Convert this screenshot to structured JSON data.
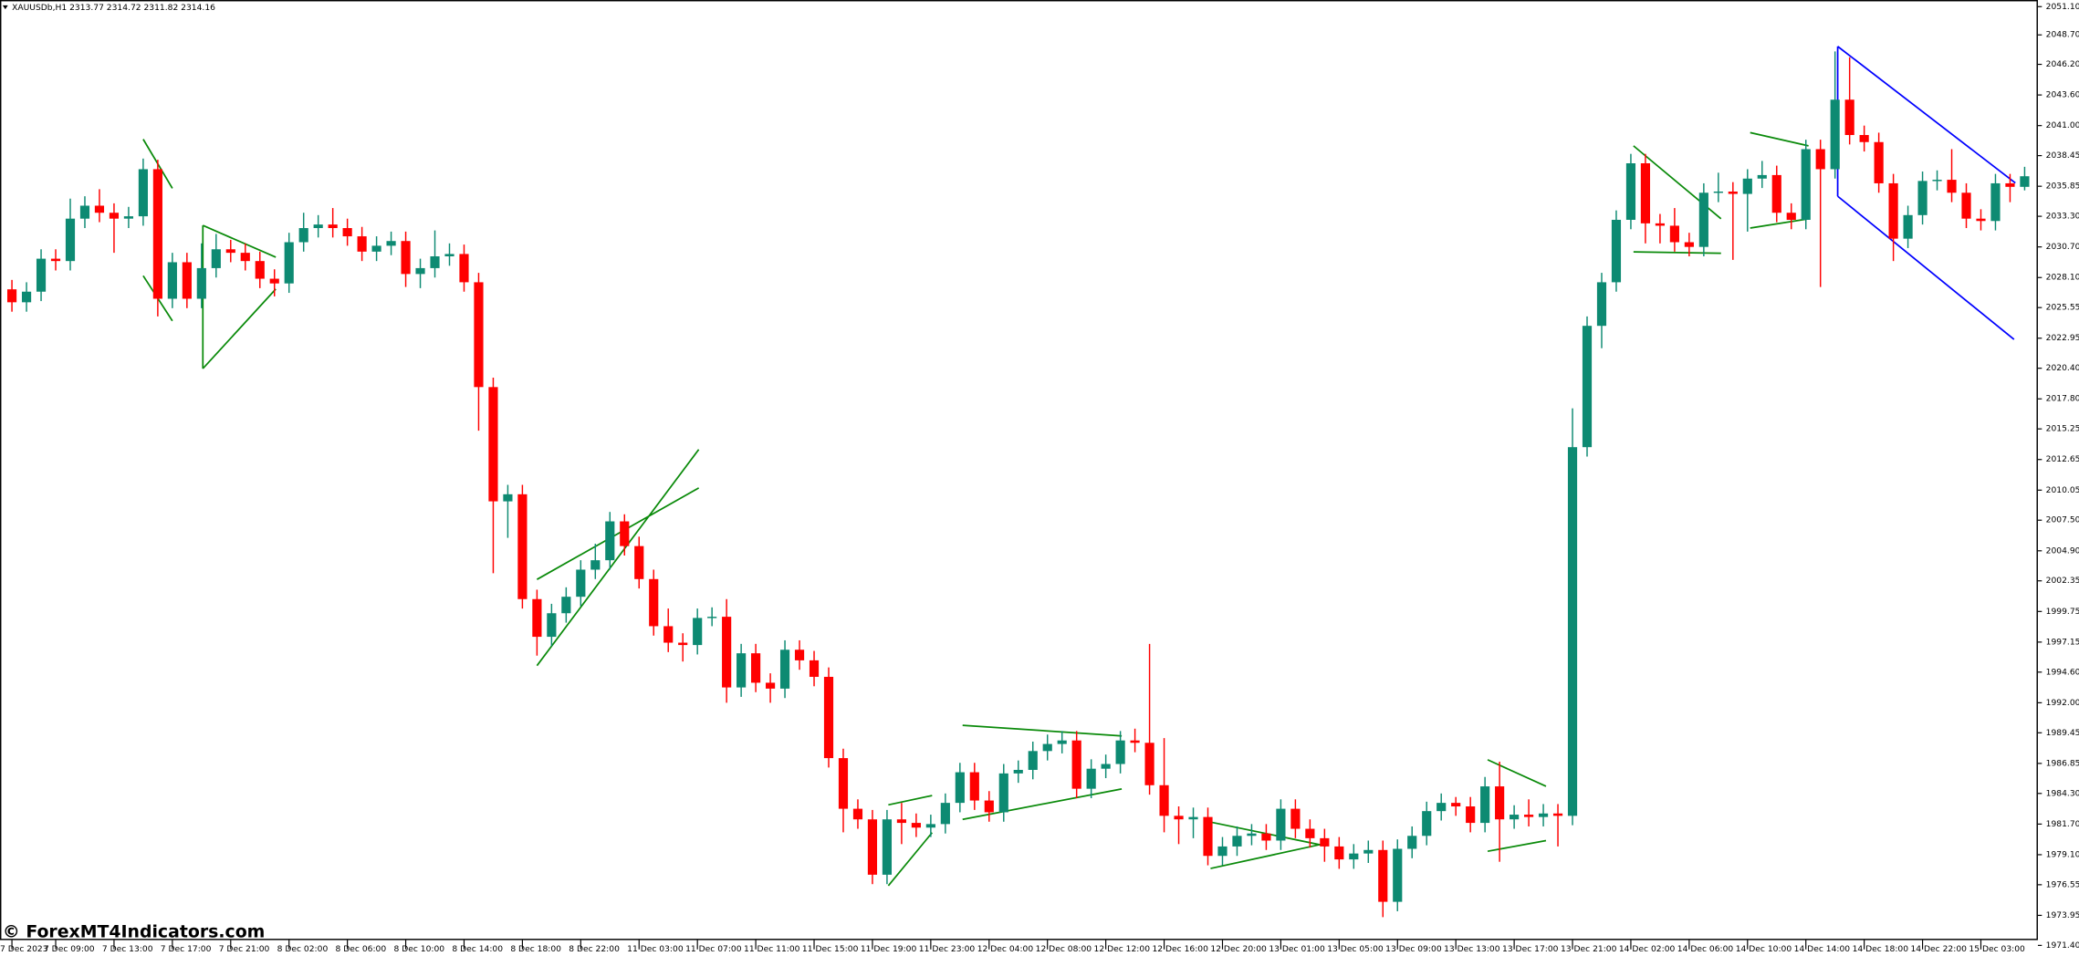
{
  "chart_data": {
    "type": "candlestick",
    "title": "XAUUSDb,H1  2313.77 2314.72 2311.82 2314.16",
    "watermark": "© ForexMT4Indicators.com",
    "up_color": "#0d8a72",
    "down_color": "#ff0000",
    "categories": [
      "7 Dec 2023",
      null,
      null,
      "7 Dec 09:00",
      null,
      null,
      null,
      "7 Dec 13:00",
      null,
      null,
      null,
      "7 Dec 17:00",
      null,
      null,
      null,
      "7 Dec 21:00",
      null,
      null,
      null,
      "8 Dec 02:00",
      null,
      null,
      null,
      "8 Dec 06:00",
      null,
      null,
      null,
      "8 Dec 10:00",
      null,
      null,
      null,
      "8 Dec 14:00",
      null,
      null,
      null,
      "8 Dec 18:00",
      null,
      null,
      null,
      "8 Dec 22:00",
      null,
      null,
      null,
      "11 Dec 03:00",
      null,
      null,
      null,
      "11 Dec 07:00",
      null,
      null,
      null,
      "11 Dec 11:00",
      null,
      null,
      null,
      "11 Dec 15:00",
      null,
      null,
      null,
      "11 Dec 19:00",
      null,
      null,
      null,
      "11 Dec 23:00",
      null,
      null,
      null,
      "12 Dec 04:00",
      null,
      null,
      null,
      "12 Dec 08:00",
      null,
      null,
      null,
      "12 Dec 12:00",
      null,
      null,
      null,
      "12 Dec 16:00",
      null,
      null,
      null,
      "12 Dec 20:00",
      null,
      null,
      null,
      "13 Dec 01:00",
      null,
      null,
      null,
      "13 Dec 05:00",
      null,
      null,
      null,
      "13 Dec 09:00",
      null,
      null,
      null,
      "13 Dec 13:00",
      null,
      null,
      null,
      "13 Dec 17:00",
      null,
      null,
      null,
      "13 Dec 21:00",
      null,
      null,
      null,
      "14 Dec 02:00",
      null,
      null,
      null,
      "14 Dec 06:00",
      null,
      null,
      null,
      "14 Dec 10:00",
      null,
      null,
      null,
      "14 Dec 14:00",
      null,
      null,
      null,
      "14 Dec 18:00",
      null,
      null,
      null,
      "14 Dec 22:00",
      null,
      null,
      null,
      "15 Dec 03:00",
      null,
      null,
      null
    ],
    "open": [
      2027.1,
      2026.0,
      2026.9,
      2029.7,
      2029.5,
      2033.1,
      2034.2,
      2033.6,
      2033.1,
      2033.3,
      2037.3,
      2026.3,
      2029.4,
      2026.3,
      2028.9,
      2030.5,
      2030.2,
      2029.5,
      2028.0,
      2027.6,
      2031.1,
      2032.3,
      2032.6,
      2032.3,
      2031.6,
      2030.3,
      2030.8,
      2031.2,
      2028.4,
      2028.9,
      2029.9,
      2030.1,
      2027.7,
      2018.8,
      2009.1,
      2009.7,
      2000.8,
      1997.6,
      1999.6,
      2001.0,
      2003.3,
      2004.1,
      2007.4,
      2005.3,
      2002.5,
      1998.5,
      1997.1,
      1996.9,
      1999.2,
      1999.3,
      1993.3,
      1996.2,
      1993.7,
      1993.2,
      1996.5,
      1995.6,
      1994.2,
      1987.3,
      1983.0,
      1982.1,
      1977.4,
      1982.1,
      1981.8,
      1981.4,
      1981.7,
      1983.5,
      1986.1,
      1983.7,
      1982.7,
      1986.0,
      1986.3,
      1987.9,
      1988.5,
      1988.8,
      1984.7,
      1986.4,
      1986.8,
      1988.8,
      1988.6,
      1985.0,
      1982.4,
      1982.1,
      1982.3,
      1979.0,
      1979.8,
      1980.7,
      1980.9,
      1980.3,
      1983.0,
      1981.3,
      1980.5,
      1979.8,
      1978.7,
      1979.2,
      1979.5,
      1975.1,
      1979.6,
      1980.7,
      1982.8,
      1983.5,
      1983.2,
      1981.8,
      1984.9,
      1982.1,
      1982.5,
      1982.3,
      1982.6,
      1982.4,
      2013.7,
      2024.0,
      2027.7,
      2033.0,
      2037.8,
      2032.7,
      2032.5,
      2031.1,
      2030.7,
      2035.3,
      2035.4,
      2035.2,
      2036.5,
      2036.8,
      2033.6,
      2033.0,
      2039.0,
      2037.3,
      2043.2,
      2040.2,
      2039.6,
      2036.1,
      2031.4,
      2033.4,
      2036.3,
      2036.4,
      2035.3,
      2033.1,
      2032.9,
      2036.1,
      2035.8
    ],
    "high": [
      2027.9,
      2027.7,
      2030.5,
      2030.5,
      2034.8,
      2035.0,
      2035.6,
      2034.4,
      2034.1,
      2038.2,
      2038.1,
      2030.2,
      2030.2,
      2031.0,
      2031.8,
      2031.3,
      2031.0,
      2030.3,
      2028.8,
      2031.9,
      2033.6,
      2033.4,
      2034.0,
      2033.1,
      2032.4,
      2031.6,
      2032.0,
      2032.0,
      2029.7,
      2032.1,
      2031.0,
      2030.9,
      2028.5,
      2019.6,
      2010.5,
      2010.5,
      2001.6,
      2000.4,
      2001.8,
      2004.1,
      2005.5,
      2008.2,
      2008.0,
      2006.1,
      2003.3,
      2000.0,
      1997.9,
      2000.0,
      2000.1,
      2000.8,
      1997.0,
      1997.0,
      1994.5,
      1997.3,
      1997.3,
      1996.4,
      1995.0,
      1988.1,
      1983.8,
      1982.9,
      1982.9,
      1983.5,
      1982.6,
      1982.5,
      1984.3,
      1986.9,
      1986.9,
      1984.5,
      1986.8,
      1987.1,
      1988.7,
      1989.3,
      1989.6,
      1989.6,
      1987.2,
      1987.6,
      1989.6,
      1989.8,
      1997.0,
      1989.0,
      1983.2,
      1983.1,
      1983.1,
      1980.6,
      1981.5,
      1981.7,
      1981.7,
      1983.8,
      1983.8,
      1982.1,
      1981.3,
      1980.6,
      1980.0,
      1980.3,
      1980.3,
      1980.4,
      1981.5,
      1983.6,
      1984.3,
      1984.0,
      1984.0,
      1985.7,
      1987.0,
      1983.3,
      1983.8,
      1983.4,
      1983.4,
      2017.0,
      2024.8,
      2028.5,
      2033.8,
      2038.6,
      2038.6,
      2033.5,
      2034.0,
      2031.9,
      2036.1,
      2037.0,
      2036.2,
      2037.3,
      2038.0,
      2037.6,
      2034.4,
      2039.8,
      2039.8,
      2047.3,
      2046.8,
      2041.0,
      2040.4,
      2036.9,
      2034.2,
      2037.1,
      2037.2,
      2039.0,
      2036.1,
      2033.9,
      2036.9,
      2036.9,
      2037.5
    ],
    "low": [
      2025.2,
      2025.2,
      2026.1,
      2028.7,
      2028.7,
      2032.3,
      2032.8,
      2030.2,
      2032.3,
      2032.5,
      2024.8,
      2025.5,
      2025.5,
      2025.5,
      2028.1,
      2029.4,
      2028.7,
      2027.2,
      2026.5,
      2026.8,
      2030.3,
      2031.5,
      2031.5,
      2030.8,
      2029.5,
      2029.5,
      2030.0,
      2027.3,
      2027.2,
      2028.1,
      2029.1,
      2026.9,
      2015.1,
      2003.0,
      2006.0,
      2000.0,
      1996.0,
      1996.8,
      1998.8,
      2000.2,
      2002.5,
      2003.3,
      2004.5,
      2001.7,
      1997.7,
      1996.3,
      1995.5,
      1996.1,
      1998.5,
      1992.0,
      1992.5,
      1992.9,
      1992.0,
      1992.4,
      1994.8,
      1993.4,
      1986.5,
      1981.0,
      1981.3,
      1976.6,
      1976.6,
      1980.0,
      1980.6,
      1980.6,
      1980.9,
      1982.7,
      1982.9,
      1981.9,
      1981.9,
      1985.2,
      1985.5,
      1987.1,
      1987.7,
      1983.9,
      1983.9,
      1985.6,
      1986.0,
      1987.8,
      1984.2,
      1981.0,
      1980.0,
      1980.5,
      1978.2,
      1978.2,
      1979.0,
      1979.9,
      1979.5,
      1979.5,
      1980.5,
      1979.7,
      1978.5,
      1977.9,
      1977.9,
      1978.4,
      1973.8,
      1974.3,
      1978.8,
      1979.9,
      1982.0,
      1982.4,
      1981.0,
      1981.0,
      1978.5,
      1981.3,
      1981.5,
      1981.5,
      1979.8,
      1981.6,
      2012.9,
      2022.1,
      2026.9,
      2032.2,
      2031.0,
      2031.0,
      2030.3,
      2029.9,
      2029.9,
      2034.5,
      2029.6,
      2032.0,
      2035.7,
      2032.8,
      2032.2,
      2032.2,
      2027.3,
      2036.5,
      2039.4,
      2038.8,
      2035.3,
      2029.5,
      2030.6,
      2032.6,
      2035.5,
      2034.5,
      2032.3,
      2032.1,
      2032.1,
      2034.5,
      2035.5
    ],
    "close": [
      2026.0,
      2026.9,
      2029.7,
      2029.5,
      2033.1,
      2034.2,
      2033.6,
      2033.1,
      2033.3,
      2037.3,
      2026.3,
      2029.4,
      2026.3,
      2028.9,
      2030.5,
      2030.2,
      2029.5,
      2028.0,
      2027.6,
      2031.1,
      2032.3,
      2032.6,
      2032.3,
      2031.6,
      2030.3,
      2030.8,
      2031.2,
      2028.4,
      2028.9,
      2029.9,
      2030.1,
      2027.7,
      2018.8,
      2009.1,
      2009.7,
      2000.8,
      1997.6,
      1999.6,
      2001.0,
      2003.3,
      2004.1,
      2007.4,
      2005.3,
      2002.5,
      1998.5,
      1997.1,
      1996.9,
      1999.2,
      1999.3,
      1993.3,
      1996.2,
      1993.7,
      1993.2,
      1996.5,
      1995.6,
      1994.2,
      1987.3,
      1983.0,
      1982.1,
      1977.4,
      1982.1,
      1981.8,
      1981.4,
      1981.7,
      1983.5,
      1986.1,
      1983.7,
      1982.7,
      1986.0,
      1986.3,
      1987.9,
      1988.5,
      1988.8,
      1984.7,
      1986.4,
      1986.8,
      1988.8,
      1988.6,
      1985.0,
      1982.4,
      1982.1,
      1982.3,
      1979.0,
      1979.8,
      1980.7,
      1980.9,
      1980.3,
      1983.0,
      1981.3,
      1980.5,
      1979.8,
      1978.7,
      1979.2,
      1979.5,
      1975.1,
      1979.6,
      1980.7,
      1982.8,
      1983.5,
      1983.2,
      1981.8,
      1984.9,
      1982.1,
      1982.5,
      1982.3,
      1982.6,
      1982.4,
      2013.7,
      2024.0,
      2027.7,
      2033.0,
      2037.8,
      2032.7,
      2032.5,
      2031.1,
      2030.7,
      2035.3,
      2035.4,
      2035.2,
      2036.5,
      2036.8,
      2033.6,
      2033.0,
      2039.0,
      2037.3,
      2043.2,
      2040.2,
      2039.6,
      2036.1,
      2031.4,
      2033.4,
      2036.3,
      2036.4,
      2035.3,
      2033.1,
      2032.9,
      2036.1,
      2035.8,
      2036.7
    ],
    "ylim": [
      1971.4,
      2051.1
    ],
    "yticks": [
      {
        "value": 2051.1,
        "label": "2051.10"
      },
      {
        "value": 2048.7,
        "label": "2048.70"
      },
      {
        "value": 2046.2,
        "label": "2046.20"
      },
      {
        "value": 2043.6,
        "label": "2043.60"
      },
      {
        "value": 2041.0,
        "label": "2041.00"
      },
      {
        "value": 2038.45,
        "label": "2038.45"
      },
      {
        "value": 2035.85,
        "label": "2035.85"
      },
      {
        "value": 2033.3,
        "label": "2033.30"
      },
      {
        "value": 2030.7,
        "label": "2030.70"
      },
      {
        "value": 2028.1,
        "label": "2028.10"
      },
      {
        "value": 2025.55,
        "label": "2025.55"
      },
      {
        "value": 2022.95,
        "label": "2022.95"
      },
      {
        "value": 2020.4,
        "label": "2020.40"
      },
      {
        "value": 2017.8,
        "label": "2017.80"
      },
      {
        "value": 2015.25,
        "label": "2015.25"
      },
      {
        "value": 2012.65,
        "label": "2012.65"
      },
      {
        "value": 2010.05,
        "label": "2010.05"
      },
      {
        "value": 2007.5,
        "label": "2007.50"
      },
      {
        "value": 2004.9,
        "label": "2004.90"
      },
      {
        "value": 2002.35,
        "label": "2002.35"
      },
      {
        "value": 1999.75,
        "label": "1999.75"
      },
      {
        "value": 1997.15,
        "label": "1997.15"
      },
      {
        "value": 1994.6,
        "label": "1994.60"
      },
      {
        "value": 1992.0,
        "label": "1992.00"
      },
      {
        "value": 1989.45,
        "label": "1989.45"
      },
      {
        "value": 1986.85,
        "label": "1986.85"
      },
      {
        "value": 1984.3,
        "label": "1984.30"
      },
      {
        "value": 1981.7,
        "label": "1981.70"
      },
      {
        "value": 1979.1,
        "label": "1979.10"
      },
      {
        "value": 1976.55,
        "label": "1976.55"
      },
      {
        "value": 1973.95,
        "label": "1973.95"
      },
      {
        "value": 1971.4,
        "label": "1971.40"
      }
    ],
    "grid": false
  }
}
